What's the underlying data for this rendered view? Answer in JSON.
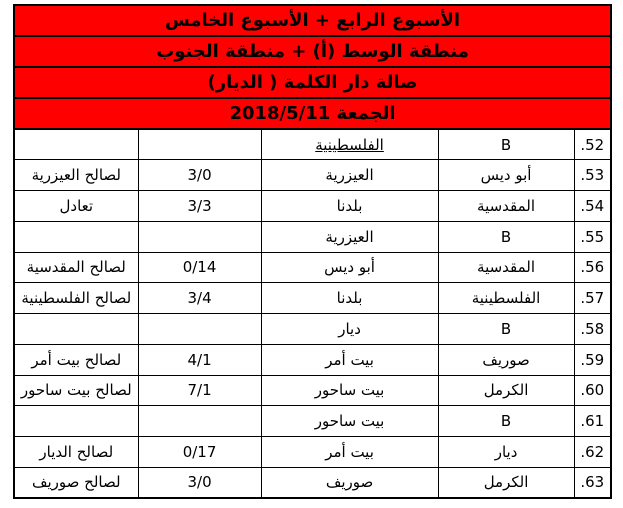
{
  "colors": {
    "header_background": "#ff0000",
    "border": "#000000",
    "text": "#000000",
    "page_background": "#ffffff"
  },
  "header": {
    "line1": "الأسبوع الرابع + الأسبوع الخامس",
    "line2": "منطقة الوسط (أ) + منطقة الجنوب",
    "line3": "صالة دار الكلمة ( الديار)",
    "line4": "الجمعة 2018/5/11"
  },
  "table": {
    "column_order_rtl": [
      "number",
      "team1",
      "team2",
      "score",
      "result"
    ],
    "rows": [
      {
        "number": ".52",
        "team1": "B",
        "team2": "الفلسطينية",
        "score": "",
        "result": "",
        "team2_underlined": true
      },
      {
        "number": ".53",
        "team1": "أبو ديس",
        "team2": "العيزرية",
        "score": "3/0",
        "result": "لصالح العيزرية"
      },
      {
        "number": ".54",
        "team1": "المقدسية",
        "team2": "بلدنا",
        "score": "3/3",
        "result": "تعادل"
      },
      {
        "number": ".55",
        "team1": "B",
        "team2": "العيزرية",
        "score": "",
        "result": ""
      },
      {
        "number": ".56",
        "team1": "المقدسية",
        "team2": "أبو ديس",
        "score": "0/14",
        "result": "لصالح المقدسية"
      },
      {
        "number": ".57",
        "team1": "الفلسطينية",
        "team2": "بلدنا",
        "score": "3/4",
        "result": "لصالح الفلسطينية"
      },
      {
        "number": ".58",
        "team1": "B",
        "team2": "ديار",
        "score": "",
        "result": ""
      },
      {
        "number": ".59",
        "team1": "صوريف",
        "team2": "بيت أمر",
        "score": "4/1",
        "result": "لصالح بيت أمر"
      },
      {
        "number": ".60",
        "team1": "الكرمل",
        "team2": "بيت ساحور",
        "score": "7/1",
        "result": "لصالح بيت ساحور"
      },
      {
        "number": ".61",
        "team1": "B",
        "team2": "بيت ساحور",
        "score": "",
        "result": ""
      },
      {
        "number": ".62",
        "team1": "ديار",
        "team2": "بيت أمر",
        "score": "0/17",
        "result": "لصالح الديار"
      },
      {
        "number": ".63",
        "team1": "الكرمل",
        "team2": "صوريف",
        "score": "3/0",
        "result": "لصالح صوريف"
      }
    ]
  }
}
